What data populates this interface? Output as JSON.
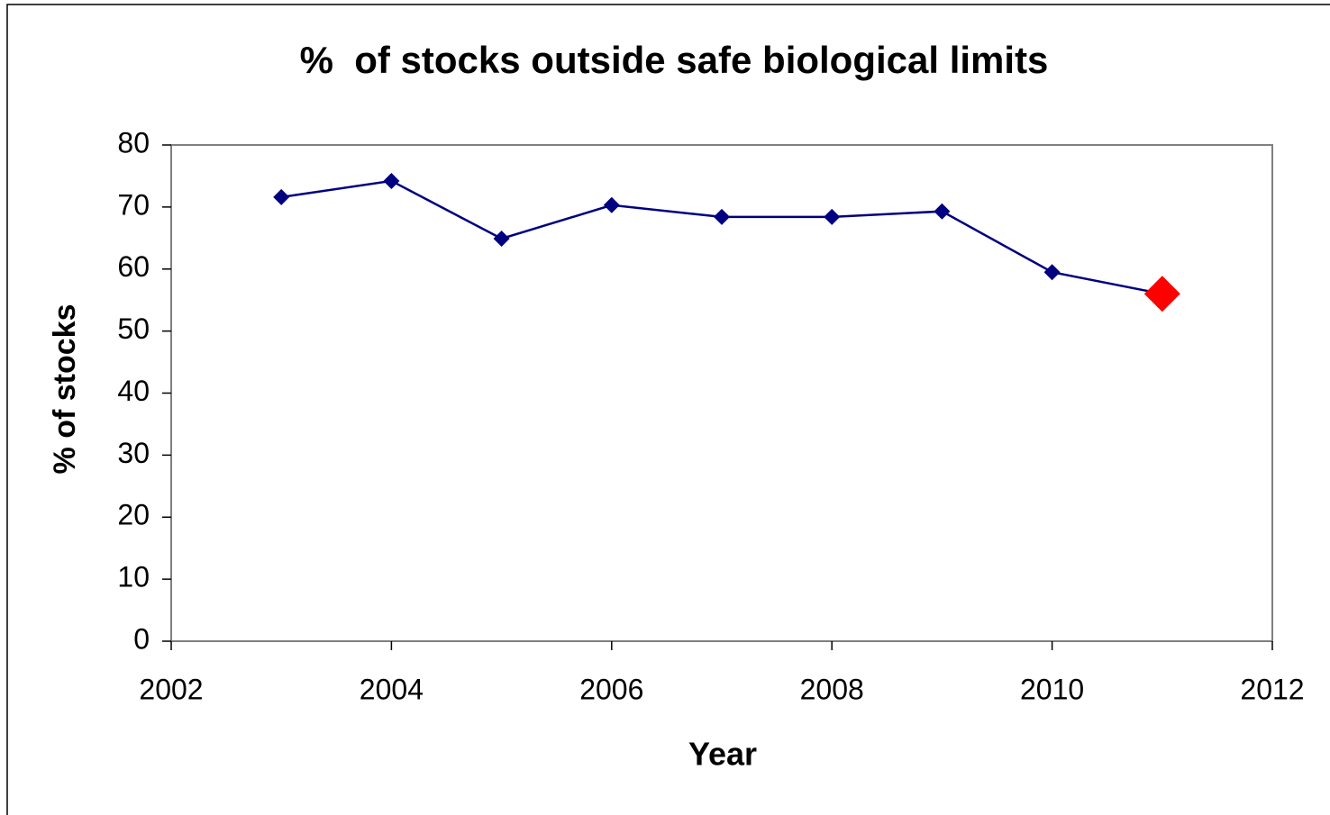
{
  "chart_data": {
    "type": "line",
    "title": "%  of stocks outside safe biological limits",
    "xlabel": "Year",
    "ylabel": "% of stocks",
    "x": [
      2003,
      2004,
      2005,
      2006,
      2007,
      2008,
      2009,
      2010,
      2011
    ],
    "series": [
      {
        "name": "% of stocks",
        "color": "#000080",
        "values": [
          71.6,
          74.2,
          64.9,
          70.3,
          68.4,
          68.4,
          69.3,
          59.5,
          56.0
        ],
        "marker_colors": [
          "#000080",
          "#000080",
          "#000080",
          "#000080",
          "#000080",
          "#000080",
          "#000080",
          "#000080",
          "#ff0000"
        ]
      }
    ],
    "xlim": [
      2002,
      2012
    ],
    "xticks": [
      2002,
      2004,
      2006,
      2008,
      2010,
      2012
    ],
    "ylim": [
      0,
      80
    ],
    "yticks": [
      0,
      10,
      20,
      30,
      40,
      50,
      60,
      70,
      80
    ],
    "grid": false,
    "legend": false
  }
}
